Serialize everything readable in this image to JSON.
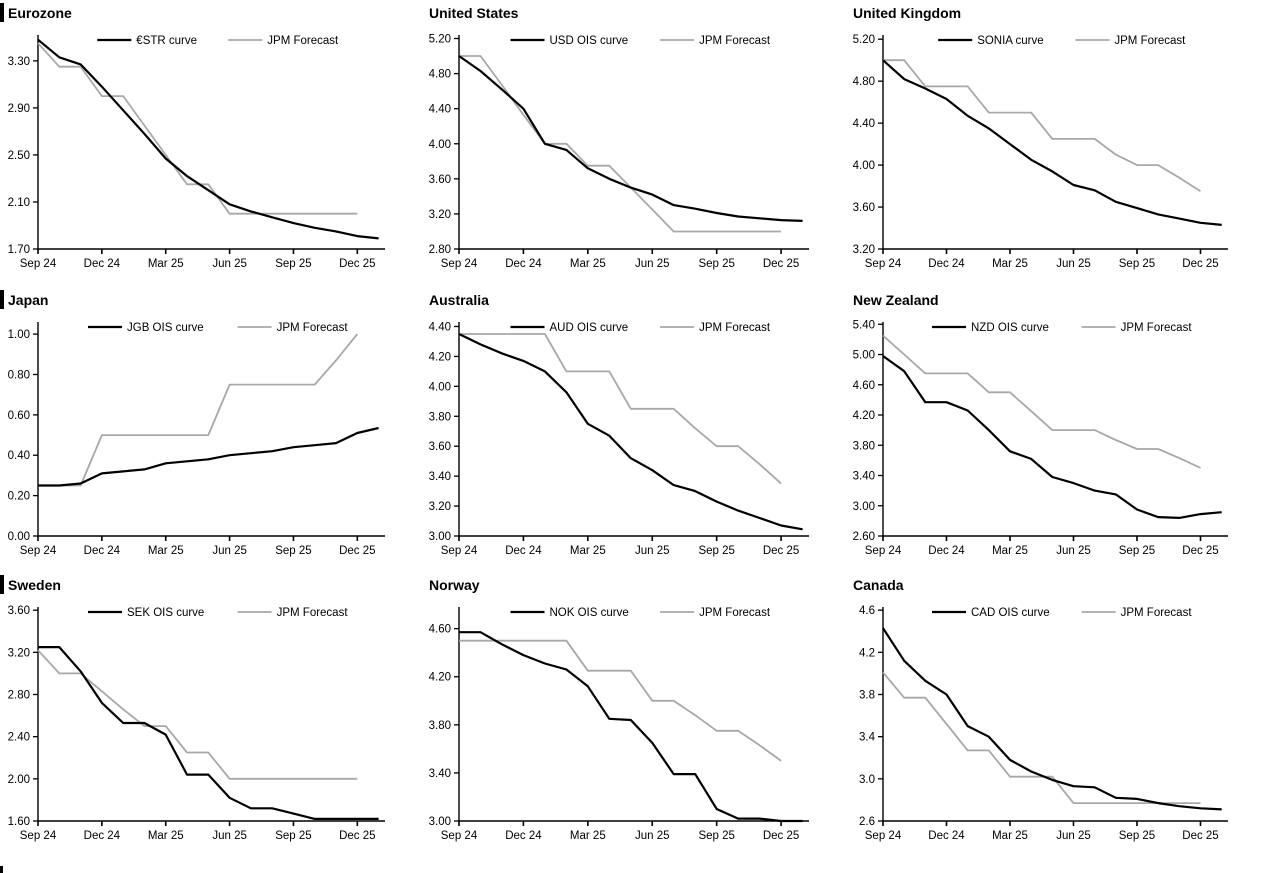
{
  "page": {
    "background": "#ffffff",
    "accent_black": "#000000",
    "forecast_gray": "#a8a8a8"
  },
  "section_markers": {
    "top_left_bars": true,
    "bottom_left_partial_bar": true
  },
  "chart_data": {
    "type": "line",
    "grid": "3x3",
    "legend_position": "top-center-inside",
    "x_months": [
      "Sep 24",
      "Oct 24",
      "Nov 24",
      "Dec 24",
      "Jan 25",
      "Feb 25",
      "Mar 25",
      "Apr 25",
      "May 25",
      "Jun 25",
      "Jul 25",
      "Aug 25",
      "Sep 25",
      "Oct 25",
      "Nov 25",
      "Dec 25"
    ],
    "x_tick_labels": [
      "Sep 24",
      "Dec 24",
      "Mar 25",
      "Jun 25",
      "Sep 25",
      "Dec 25"
    ],
    "charts": [
      {
        "title": "Eurozone",
        "y_ticks": [
          "1.70",
          "2.10",
          "2.50",
          "2.90",
          "3.30"
        ],
        "y_min": 1.7,
        "y_max": 3.52,
        "series": [
          {
            "name": "€STR curve",
            "color": "#000000",
            "values": [
              3.48,
              3.33,
              3.27,
              3.08,
              2.88,
              2.68,
              2.47,
              2.32,
              2.2,
              2.08,
              2.02,
              1.97,
              1.92,
              1.88,
              1.85,
              1.81
            ]
          },
          {
            "name": "JPM Forecast",
            "color": "#a8a8a8",
            "values": [
              3.45,
              3.25,
              3.25,
              3.0,
              3.0,
              2.75,
              2.5,
              2.25,
              2.25,
              2.0,
              2.0,
              2.0,
              2.0,
              2.0,
              2.0,
              2.0
            ]
          }
        ]
      },
      {
        "title": "United States",
        "y_ticks": [
          "2.80",
          "3.20",
          "3.60",
          "4.00",
          "4.40",
          "4.80",
          "5.20"
        ],
        "y_min": 2.8,
        "y_max": 5.24,
        "series": [
          {
            "name": "USD OIS curve",
            "color": "#000000",
            "values": [
              5.0,
              4.83,
              4.62,
              4.4,
              4.0,
              3.93,
              3.72,
              3.6,
              3.5,
              3.42,
              3.3,
              3.26,
              3.21,
              3.17,
              3.15,
              3.13
            ]
          },
          {
            "name": "JPM Forecast",
            "color": "#a8a8a8",
            "values": [
              5.0,
              5.0,
              4.67,
              4.33,
              4.0,
              4.0,
              3.75,
              3.75,
              3.5,
              3.25,
              3.0,
              3.0,
              3.0,
              3.0,
              3.0,
              3.0
            ]
          }
        ]
      },
      {
        "title": "United Kingdom",
        "y_ticks": [
          "3.20",
          "3.60",
          "4.00",
          "4.40",
          "4.80",
          "5.20"
        ],
        "y_min": 3.2,
        "y_max": 5.24,
        "series": [
          {
            "name": "SONIA curve",
            "color": "#000000",
            "values": [
              5.0,
              4.82,
              4.73,
              4.63,
              4.47,
              4.35,
              4.2,
              4.05,
              3.94,
              3.81,
              3.76,
              3.65,
              3.59,
              3.53,
              3.49,
              3.45
            ]
          },
          {
            "name": "JPM Forecast",
            "color": "#a8a8a8",
            "values": [
              5.0,
              5.0,
              4.75,
              4.75,
              4.75,
              4.5,
              4.5,
              4.5,
              4.25,
              4.25,
              4.25,
              4.1,
              4.0,
              4.0,
              3.88,
              3.75
            ]
          }
        ]
      },
      {
        "title": "Japan",
        "y_ticks": [
          "0.00",
          "0.20",
          "0.40",
          "0.60",
          "0.80",
          "1.00"
        ],
        "y_min": 0.0,
        "y_max": 1.06,
        "series": [
          {
            "name": "JGB OIS curve",
            "color": "#000000",
            "values": [
              0.25,
              0.25,
              0.26,
              0.31,
              0.32,
              0.33,
              0.36,
              0.37,
              0.38,
              0.4,
              0.41,
              0.42,
              0.44,
              0.45,
              0.46,
              0.51
            ]
          },
          {
            "name": "JPM Forecast",
            "color": "#a8a8a8",
            "values": [
              0.25,
              0.25,
              0.25,
              0.5,
              0.5,
              0.5,
              0.5,
              0.5,
              0.5,
              0.75,
              0.75,
              0.75,
              0.75,
              0.75,
              0.87,
              1.0
            ]
          }
        ]
      },
      {
        "title": "Australia",
        "y_ticks": [
          "3.00",
          "3.20",
          "3.40",
          "3.60",
          "3.80",
          "4.00",
          "4.20",
          "4.40"
        ],
        "y_min": 3.0,
        "y_max": 4.43,
        "series": [
          {
            "name": "AUD OIS curve",
            "color": "#000000",
            "values": [
              4.35,
              4.28,
              4.22,
              4.17,
              4.1,
              3.96,
              3.75,
              3.67,
              3.52,
              3.44,
              3.34,
              3.3,
              3.23,
              3.17,
              3.12,
              3.07
            ]
          },
          {
            "name": "JPM Forecast",
            "color": "#a8a8a8",
            "values": [
              4.35,
              4.35,
              4.35,
              4.35,
              4.35,
              4.1,
              4.1,
              4.1,
              3.85,
              3.85,
              3.85,
              3.72,
              3.6,
              3.6,
              3.48,
              3.35
            ]
          }
        ]
      },
      {
        "title": "New Zealand",
        "y_ticks": [
          "2.60",
          "3.00",
          "3.40",
          "3.80",
          "4.20",
          "4.60",
          "5.00",
          "5.40"
        ],
        "y_min": 2.6,
        "y_max": 5.43,
        "series": [
          {
            "name": "NZD OIS curve",
            "color": "#000000",
            "values": [
              4.98,
              4.78,
              4.37,
              4.37,
              4.26,
              4.0,
              3.72,
              3.62,
              3.38,
              3.3,
              3.2,
              3.15,
              2.95,
              2.85,
              2.84,
              2.89
            ]
          },
          {
            "name": "JPM Forecast",
            "color": "#a8a8a8",
            "values": [
              5.25,
              5.0,
              4.75,
              4.75,
              4.75,
              4.5,
              4.5,
              4.25,
              4.0,
              4.0,
              4.0,
              3.87,
              3.75,
              3.75,
              3.63,
              3.5
            ]
          }
        ]
      },
      {
        "title": "Sweden",
        "y_ticks": [
          "1.60",
          "2.00",
          "2.40",
          "2.80",
          "3.20",
          "3.60"
        ],
        "y_min": 1.6,
        "y_max": 3.63,
        "series": [
          {
            "name": "SEK OIS curve",
            "color": "#000000",
            "values": [
              3.25,
              3.25,
              3.02,
              2.72,
              2.53,
              2.53,
              2.42,
              2.04,
              2.04,
              1.82,
              1.72,
              1.72,
              1.67,
              1.62,
              1.62,
              1.62
            ]
          },
          {
            "name": "JPM Forecast",
            "color": "#a8a8a8",
            "values": [
              3.22,
              3.0,
              3.0,
              2.83,
              2.66,
              2.5,
              2.5,
              2.25,
              2.25,
              2.0,
              2.0,
              2.0,
              2.0,
              2.0,
              2.0,
              2.0
            ]
          }
        ]
      },
      {
        "title": "Norway",
        "y_ticks": [
          "3.00",
          "3.40",
          "3.80",
          "4.20",
          "4.60"
        ],
        "y_min": 3.0,
        "y_max": 4.78,
        "series": [
          {
            "name": "NOK OIS curve",
            "color": "#000000",
            "values": [
              4.57,
              4.57,
              4.47,
              4.38,
              4.31,
              4.26,
              4.12,
              3.85,
              3.84,
              3.65,
              3.39,
              3.39,
              3.1,
              3.02,
              3.02,
              3.0
            ]
          },
          {
            "name": "JPM Forecast",
            "color": "#a8a8a8",
            "values": [
              4.5,
              4.5,
              4.5,
              4.5,
              4.5,
              4.5,
              4.25,
              4.25,
              4.25,
              4.0,
              4.0,
              3.88,
              3.75,
              3.75,
              3.63,
              3.5
            ]
          }
        ]
      },
      {
        "title": "Canada",
        "y_ticks": [
          "2.6",
          "3.0",
          "3.4",
          "3.8",
          "4.2",
          "4.6"
        ],
        "y_min": 2.6,
        "y_max": 4.63,
        "series": [
          {
            "name": "CAD OIS curve",
            "color": "#000000",
            "values": [
              4.43,
              4.12,
              3.93,
              3.8,
              3.5,
              3.4,
              3.18,
              3.07,
              2.99,
              2.93,
              2.92,
              2.82,
              2.81,
              2.77,
              2.74,
              2.72
            ]
          },
          {
            "name": "JPM Forecast",
            "color": "#a8a8a8",
            "values": [
              4.01,
              3.77,
              3.77,
              3.52,
              3.27,
              3.27,
              3.02,
              3.02,
              3.02,
              2.77,
              2.77,
              2.77,
              2.77,
              2.77,
              2.77,
              2.77
            ]
          }
        ]
      }
    ]
  }
}
